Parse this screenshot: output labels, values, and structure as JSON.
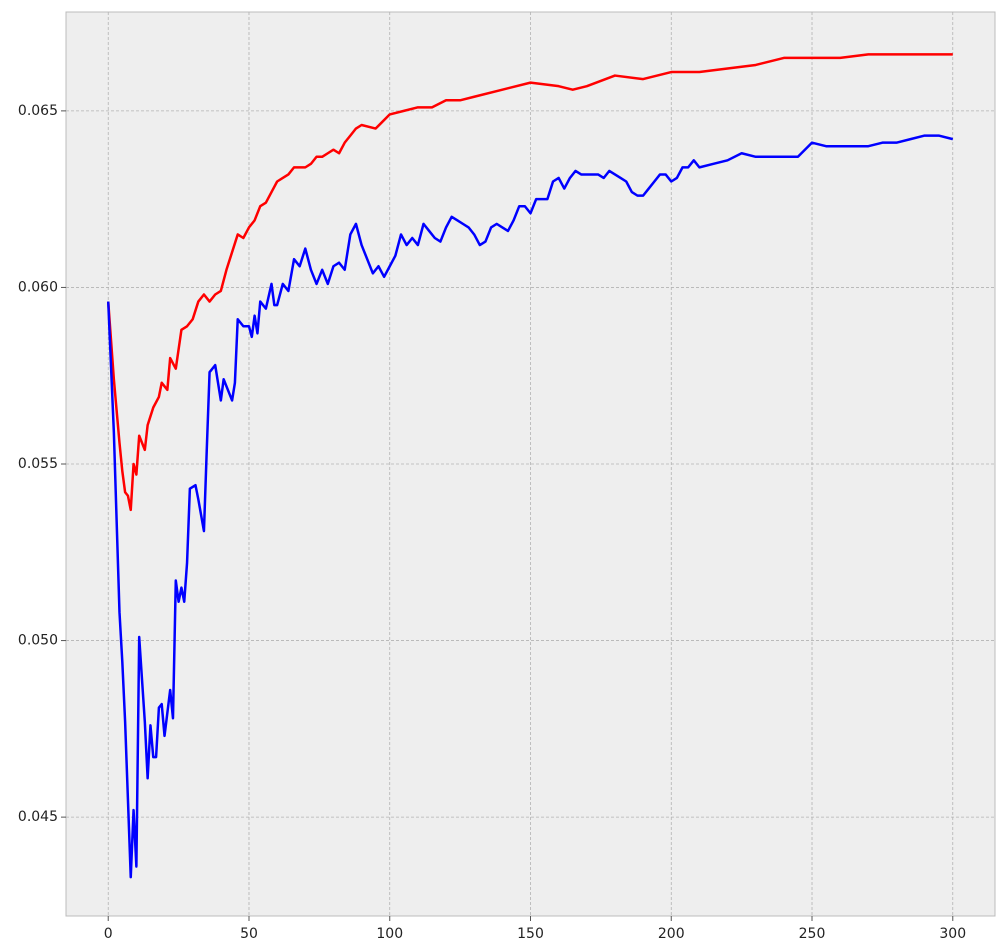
{
  "chart_data": {
    "type": "line",
    "xlim": [
      -15,
      315
    ],
    "ylim": [
      0.0422,
      0.0678
    ],
    "xticks": [
      0,
      50,
      100,
      150,
      200,
      250,
      300
    ],
    "yticks": [
      0.045,
      {
        "value": 0.05,
        "label": "0.050"
      },
      0.055,
      {
        "value": 0.06,
        "label": "0.060"
      },
      0.065
    ],
    "grid": true,
    "series": [
      {
        "color": "#ff0000",
        "x": [
          0,
          2,
          4,
          5,
          6,
          7,
          8,
          9,
          10,
          11,
          13,
          14,
          16,
          18,
          19,
          20,
          21,
          22,
          24,
          26,
          28,
          30,
          32,
          34,
          36,
          38,
          40,
          42,
          44,
          46,
          48,
          50,
          52,
          54,
          56,
          58,
          60,
          62,
          64,
          66,
          70,
          72,
          74,
          76,
          78,
          80,
          82,
          84,
          86,
          88,
          90,
          95,
          100,
          105,
          110,
          115,
          120,
          125,
          130,
          140,
          150,
          160,
          165,
          170,
          180,
          190,
          200,
          210,
          220,
          230,
          240,
          250,
          260,
          270,
          280,
          290,
          300
        ],
        "values": [
          0.0596,
          0.0574,
          0.0556,
          0.0548,
          0.0542,
          0.0541,
          0.0537,
          0.055,
          0.0547,
          0.0558,
          0.0554,
          0.0561,
          0.0566,
          0.0569,
          0.0573,
          0.0572,
          0.0571,
          0.058,
          0.0577,
          0.0588,
          0.0589,
          0.0591,
          0.0596,
          0.0598,
          0.0596,
          0.0598,
          0.0599,
          0.0605,
          0.061,
          0.0615,
          0.0614,
          0.0617,
          0.0619,
          0.0623,
          0.0624,
          0.0627,
          0.063,
          0.0631,
          0.0632,
          0.0634,
          0.0634,
          0.0635,
          0.0637,
          0.0637,
          0.0638,
          0.0639,
          0.0638,
          0.0641,
          0.0643,
          0.0645,
          0.0646,
          0.0645,
          0.0649,
          0.065,
          0.0651,
          0.0651,
          0.0653,
          0.0653,
          0.0654,
          0.0656,
          0.0658,
          0.0657,
          0.0656,
          0.0657,
          0.066,
          0.0659,
          0.0661,
          0.0661,
          0.0662,
          0.0663,
          0.0665,
          0.0665,
          0.0665,
          0.0666,
          0.0666,
          0.0666,
          0.0666
        ]
      },
      {
        "color": "#0000ff",
        "x": [
          0,
          2,
          4,
          5,
          6,
          7,
          8,
          9,
          10,
          11,
          13,
          14,
          15,
          16,
          17,
          18,
          19,
          20,
          22,
          23,
          24,
          25,
          26,
          27,
          28,
          29,
          31,
          32,
          34,
          35,
          36,
          38,
          40,
          41,
          42,
          44,
          45,
          46,
          48,
          50,
          51,
          52,
          53,
          54,
          56,
          58,
          59,
          60,
          62,
          64,
          66,
          68,
          70,
          72,
          74,
          76,
          78,
          80,
          82,
          84,
          86,
          88,
          90,
          92,
          94,
          96,
          98,
          100,
          102,
          104,
          106,
          108,
          110,
          112,
          114,
          116,
          118,
          120,
          122,
          124,
          126,
          128,
          130,
          132,
          134,
          136,
          138,
          140,
          142,
          144,
          146,
          148,
          150,
          152,
          154,
          156,
          158,
          160,
          162,
          164,
          166,
          168,
          170,
          172,
          174,
          176,
          178,
          180,
          182,
          184,
          186,
          188,
          190,
          192,
          194,
          196,
          198,
          200,
          202,
          204,
          206,
          208,
          210,
          215,
          220,
          225,
          230,
          235,
          240,
          245,
          250,
          255,
          260,
          265,
          270,
          275,
          280,
          285,
          290,
          295,
          300
        ],
        "values": [
          0.0596,
          0.0559,
          0.0508,
          0.0494,
          0.0477,
          0.0455,
          0.0433,
          0.0452,
          0.0436,
          0.0501,
          0.0477,
          0.0461,
          0.0476,
          0.0467,
          0.0467,
          0.0481,
          0.0482,
          0.0473,
          0.0486,
          0.0478,
          0.0517,
          0.0511,
          0.0515,
          0.0511,
          0.0522,
          0.0543,
          0.0544,
          0.054,
          0.0531,
          0.0554,
          0.0576,
          0.0578,
          0.0568,
          0.0574,
          0.0572,
          0.0568,
          0.0573,
          0.0591,
          0.0589,
          0.0589,
          0.0586,
          0.0592,
          0.0587,
          0.0596,
          0.0594,
          0.0601,
          0.0595,
          0.0595,
          0.0601,
          0.0599,
          0.0608,
          0.0606,
          0.0611,
          0.0605,
          0.0601,
          0.0605,
          0.0601,
          0.0606,
          0.0607,
          0.0605,
          0.0615,
          0.0618,
          0.0612,
          0.0608,
          0.0604,
          0.0606,
          0.0603,
          0.0606,
          0.0609,
          0.0615,
          0.0612,
          0.0614,
          0.0612,
          0.0618,
          0.0616,
          0.0614,
          0.0613,
          0.0617,
          0.062,
          0.0619,
          0.0618,
          0.0617,
          0.0615,
          0.0612,
          0.0613,
          0.0617,
          0.0618,
          0.0617,
          0.0616,
          0.0619,
          0.0623,
          0.0623,
          0.0621,
          0.0625,
          0.0625,
          0.0625,
          0.063,
          0.0631,
          0.0628,
          0.0631,
          0.0633,
          0.0632,
          0.0632,
          0.0632,
          0.0632,
          0.0631,
          0.0633,
          0.0632,
          0.0631,
          0.063,
          0.0627,
          0.0626,
          0.0626,
          0.0628,
          0.063,
          0.0632,
          0.0632,
          0.063,
          0.0631,
          0.0634,
          0.0634,
          0.0636,
          0.0634,
          0.0635,
          0.0636,
          0.0638,
          0.0637,
          0.0637,
          0.0637,
          0.0637,
          0.0641,
          0.064,
          0.064,
          0.064,
          0.064,
          0.0641,
          0.0641,
          0.0642,
          0.0643,
          0.0643,
          0.0642
        ]
      }
    ]
  }
}
